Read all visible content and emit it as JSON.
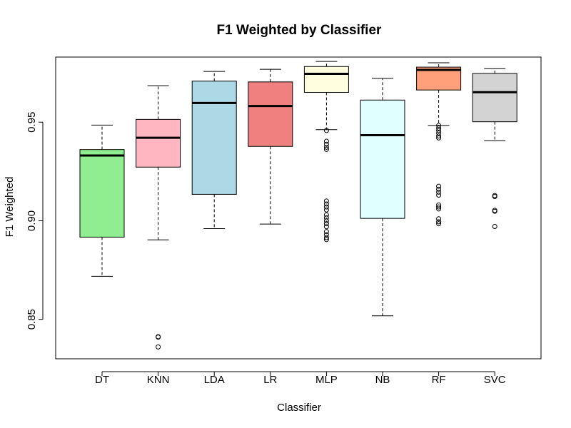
{
  "chart_data": {
    "type": "boxplot",
    "title": "F1 Weighted by Classifier",
    "xlabel": "Classifier",
    "ylabel": "F1 Weighted",
    "ylim": [
      0.83,
      0.983
    ],
    "y_ticks": [
      0.85,
      0.9,
      0.95
    ],
    "y_tick_labels": [
      "0.85",
      "0.90",
      "0.95"
    ],
    "grid": false,
    "categories": [
      "DT",
      "KNN",
      "LDA",
      "LR",
      "MLP",
      "NB",
      "RF",
      "SVC"
    ],
    "boxes": [
      {
        "category": "DT",
        "color": "#90EE90",
        "whisker_low": 0.8718,
        "q1": 0.8917,
        "median": 0.9331,
        "q3": 0.9361,
        "whisker_high": 0.9485,
        "outliers": []
      },
      {
        "category": "KNN",
        "color": "#FFB6C1",
        "whisker_low": 0.8903,
        "q1": 0.9272,
        "median": 0.9421,
        "q3": 0.9514,
        "whisker_high": 0.9685,
        "outliers": [
          0.8412,
          0.841,
          0.836
        ]
      },
      {
        "category": "LDA",
        "color": "#ADD8E6",
        "whisker_low": 0.896,
        "q1": 0.9134,
        "median": 0.9597,
        "q3": 0.9708,
        "whisker_high": 0.9757,
        "outliers": []
      },
      {
        "category": "LR",
        "color": "#F08080",
        "whisker_low": 0.8983,
        "q1": 0.9377,
        "median": 0.9582,
        "q3": 0.9704,
        "whisker_high": 0.9768,
        "outliers": []
      },
      {
        "category": "MLP",
        "color": "#FFFFE0",
        "whisker_low": 0.9462,
        "q1": 0.9651,
        "median": 0.9745,
        "q3": 0.9782,
        "whisker_high": 0.9808,
        "outliers": [
          0.9458,
          0.9403,
          0.9388,
          0.9373,
          0.9362,
          0.91,
          0.9085,
          0.907,
          0.9055,
          0.903,
          0.9015,
          0.9,
          0.8985,
          0.897,
          0.8945,
          0.893,
          0.8915,
          0.8905
        ]
      },
      {
        "category": "NB",
        "color": "#E0FFFF",
        "whisker_low": 0.8518,
        "q1": 0.9012,
        "median": 0.9434,
        "q3": 0.9612,
        "whisker_high": 0.9722,
        "outliers": []
      },
      {
        "category": "RF",
        "color": "#FFA07A",
        "whisker_low": 0.9483,
        "q1": 0.9663,
        "median": 0.9765,
        "q3": 0.9779,
        "whisker_high": 0.9801,
        "outliers": [
          0.9483,
          0.947,
          0.9458,
          0.9445,
          0.943,
          0.942,
          0.9175,
          0.916,
          0.9145,
          0.913,
          0.908,
          0.907,
          0.906,
          0.901,
          0.8995,
          0.8985
        ]
      },
      {
        "category": "SVC",
        "color": "#D3D3D3",
        "whisker_low": 0.9406,
        "q1": 0.9502,
        "median": 0.9652,
        "q3": 0.9747,
        "whisker_high": 0.9771,
        "outliers": [
          0.9128,
          0.9123,
          0.9053,
          0.9048,
          0.8971
        ]
      }
    ]
  }
}
